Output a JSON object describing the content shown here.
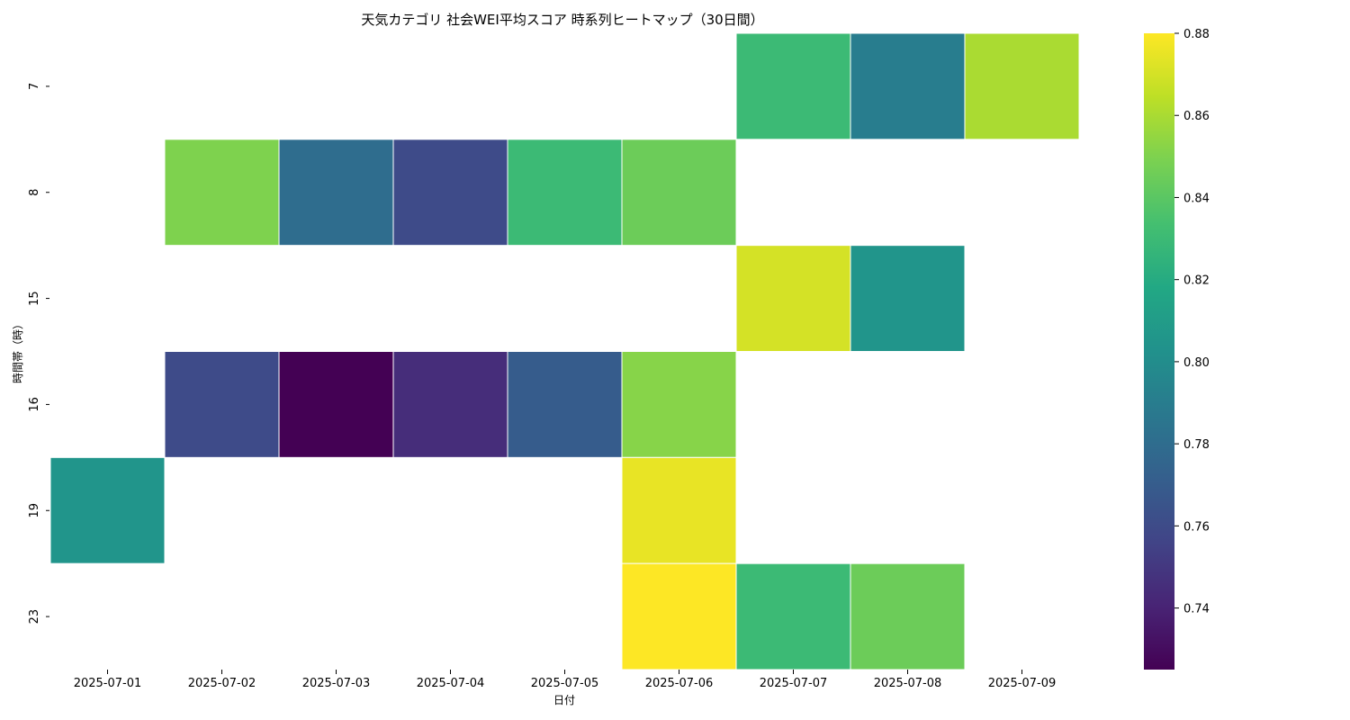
{
  "chart_data": {
    "type": "heatmap",
    "title": "天気カテゴリ 社会WEI平均スコア 時系列ヒートマップ（30日間）",
    "xlabel": "日付",
    "ylabel": "時間帯（時）",
    "x": [
      "2025-07-01",
      "2025-07-02",
      "2025-07-03",
      "2025-07-04",
      "2025-07-05",
      "2025-07-06",
      "2025-07-07",
      "2025-07-08",
      "2025-07-09"
    ],
    "y": [
      "7",
      "8",
      "15",
      "16",
      "19",
      "23"
    ],
    "values": [
      [
        null,
        null,
        null,
        null,
        null,
        null,
        0.83,
        0.79,
        0.86
      ],
      [
        null,
        0.85,
        0.78,
        0.76,
        0.83,
        0.845,
        null,
        null,
        null
      ],
      [
        null,
        null,
        null,
        null,
        null,
        null,
        0.87,
        0.805,
        null
      ],
      [
        null,
        0.76,
        0.725,
        0.745,
        0.77,
        0.852,
        null,
        null,
        null
      ],
      [
        0.805,
        null,
        null,
        null,
        null,
        0.875,
        null,
        null,
        null
      ],
      [
        null,
        null,
        null,
        null,
        null,
        0.88,
        0.83,
        0.845,
        null
      ]
    ],
    "colormap": "viridis",
    "colorbar": {
      "min": 0.725,
      "max": 0.88,
      "ticks": [
        "0.74",
        "0.76",
        "0.78",
        "0.80",
        "0.82",
        "0.84",
        "0.86",
        "0.88"
      ]
    },
    "cell_border_color": "#ffffff",
    "grid": false,
    "legend": "colorbar-right"
  }
}
